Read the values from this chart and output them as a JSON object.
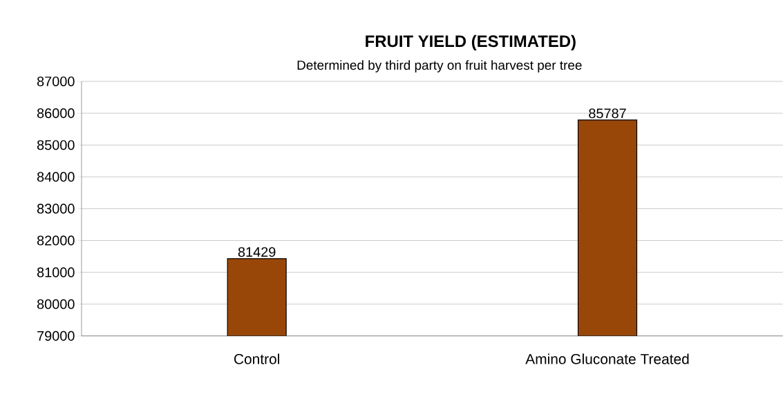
{
  "chart_data": {
    "type": "bar",
    "title": "FRUIT YIELD (ESTIMATED)",
    "subtitle": "Determined  by third party on  fruit harvest per tree",
    "categories": [
      "Control",
      "Amino Gluconate Treated"
    ],
    "values": [
      81429,
      85787
    ],
    "color": "#994709",
    "data_labels": true,
    "ylim": [
      79000,
      87000
    ],
    "yticks": [
      79000,
      80000,
      81000,
      82000,
      83000,
      84000,
      85000,
      86000,
      87000
    ],
    "grid": "y"
  }
}
